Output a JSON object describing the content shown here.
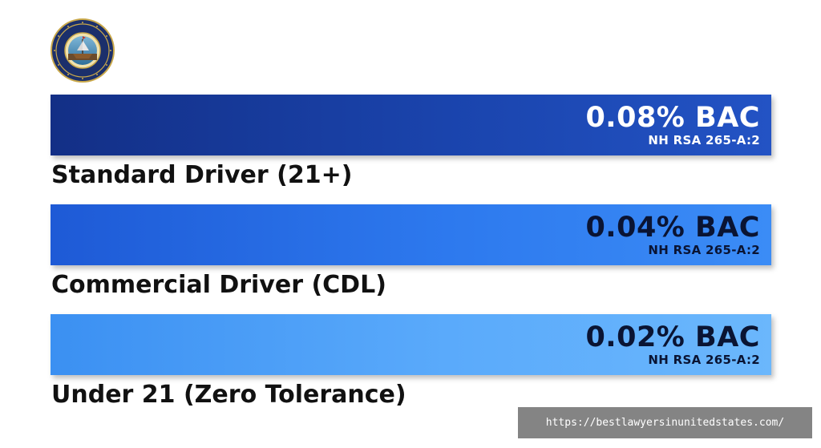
{
  "seal": {
    "icon": "state-seal-icon"
  },
  "tiers": [
    {
      "bac": "0.08% BAC",
      "statute": "NH RSA 265-A:2",
      "label": "Standard Driver (21+)",
      "color": "#1a44ad"
    },
    {
      "bac": "0.04% BAC",
      "statute": "NH RSA 265-A:2",
      "label": "Commercial Driver (CDL)",
      "color": "#2d79ee"
    },
    {
      "bac": "0.02% BAC",
      "statute": "NH RSA 265-A:2",
      "label": "Under 21 (Zero Tolerance)",
      "color": "#5aaafb"
    }
  ],
  "watermark": "https://bestlawyersinunitedstates.com/"
}
